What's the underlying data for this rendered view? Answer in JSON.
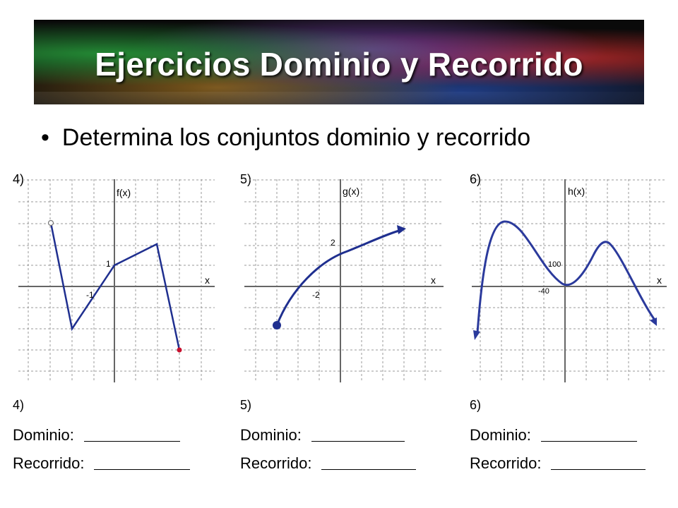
{
  "banner": {
    "title": "Ejercicios Dominio y Recorrido"
  },
  "instruction": {
    "bullet": "•",
    "text": "Determina los conjuntos dominio y recorrido"
  },
  "exercises": [
    {
      "number": "4)",
      "function_label": "f(x)",
      "x_label": "x",
      "tick_labels": [
        "1",
        "-1"
      ],
      "answer_number": "4)",
      "dominio_label": "Dominio:",
      "recorrido_label": "Recorrido:"
    },
    {
      "number": "5)",
      "function_label": "g(x)",
      "x_label": "x",
      "tick_labels": [
        "2",
        "-2"
      ],
      "answer_number": "5)",
      "dominio_label": "Dominio:",
      "recorrido_label": "Recorrido:"
    },
    {
      "number": "6)",
      "function_label": "h(x)",
      "x_label": "x",
      "tick_labels": [
        "100",
        "-40"
      ],
      "answer_number": "6)",
      "dominio_label": "Dominio:",
      "recorrido_label": "Recorrido:"
    }
  ],
  "colors": {
    "curve": "#1f2f8f",
    "closed_point": "#c8102e",
    "grid": "#9a9a9a"
  }
}
